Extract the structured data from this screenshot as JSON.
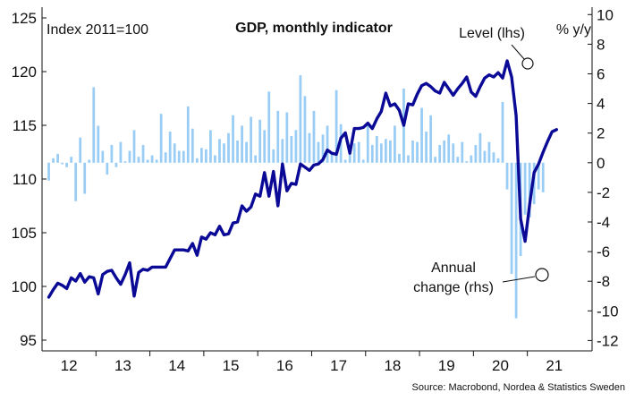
{
  "chart_data": {
    "type": "bar+line",
    "title": "GDP, monthly indicator",
    "left_axis_label": "Index 2011=100",
    "right_axis_label": "% y/y",
    "source": "Source: Macrobond, Nordea & Statistics Sweden",
    "left_ylim": [
      94,
      126
    ],
    "right_ylim": [
      -12.7,
      10.5
    ],
    "left_ticks": [
      95,
      100,
      105,
      110,
      115,
      120,
      125
    ],
    "right_ticks": [
      10,
      8,
      6,
      4,
      2,
      0,
      -2,
      -4,
      -6,
      -8,
      -10,
      -12
    ],
    "xlim": [
      2011.5,
      2021.7
    ],
    "x_ticks": [
      {
        "label": "12",
        "x": 2012.0
      },
      {
        "label": "13",
        "x": 2013.0
      },
      {
        "label": "14",
        "x": 2014.0
      },
      {
        "label": "15",
        "x": 2015.0
      },
      {
        "label": "16",
        "x": 2016.0
      },
      {
        "label": "17",
        "x": 2017.0
      },
      {
        "label": "18",
        "x": 2018.0
      },
      {
        "label": "19",
        "x": 2019.0
      },
      {
        "label": "20",
        "x": 2020.0
      },
      {
        "label": "21",
        "x": 2021.0
      }
    ],
    "annotations": [
      {
        "text": "Level (lhs)",
        "series": "Level (lhs)"
      },
      {
        "text_lines": [
          "Annual",
          "change (rhs)"
        ],
        "series": "Annual change (rhs)"
      }
    ],
    "colors": {
      "level": "#0a0a96",
      "bars": "#99cdf5",
      "axis": "#111111",
      "gridline": "#e6e6e6"
    },
    "series": [
      {
        "name": "Annual change (rhs)",
        "axis": "right",
        "type": "bar",
        "start": [
          2011,
          8
        ],
        "values": [
          -1.2,
          0.3,
          0.6,
          -0.1,
          -0.3,
          0.4,
          -2.6,
          1.7,
          -2.1,
          0.2,
          5.1,
          2.5,
          0.8,
          -0.8,
          1.2,
          -0.3,
          1.4,
          0.1,
          0.8,
          2.2,
          0.4,
          1.2,
          0.2,
          0.5,
          0.2,
          3.3,
          0.7,
          2.1,
          1.3,
          0.8,
          0.8,
          3.8,
          2.3,
          0.3,
          1.0,
          0.9,
          2.2,
          0.5,
          1.6,
          1.3,
          2.0,
          3.2,
          1.5,
          2.5,
          1.4,
          3.1,
          0.5,
          2.9,
          2.2,
          4.8,
          0.9,
          3.5,
          1.6,
          3.4,
          1.8,
          2.2,
          5.9,
          4.5,
          2.0,
          3.5,
          1.4,
          1.9,
          2.5,
          0.7,
          4.9,
          2.6,
          0.2,
          0.9,
          1.3,
          1.4,
          0.2,
          2.5,
          1.2,
          1.8,
          1.3,
          1.6,
          1.5,
          2.5,
          0.6,
          5.0,
          0.5,
          1.5,
          1.4,
          3.7,
          2.1,
          3.2,
          0.4,
          1.2,
          1.5,
          1.9,
          1.3,
          0.4,
          1.4,
          0.1,
          0.5,
          1.2,
          2.0,
          0.8,
          1.4,
          0.7,
          0.3,
          4.1,
          -1.8,
          -7.5,
          -10.5,
          -6.3,
          -3.5,
          -3.7,
          -2.8,
          -1.8,
          -2.0
        ]
      },
      {
        "name": "Level (lhs)",
        "axis": "left",
        "type": "line",
        "start": [
          2011,
          8
        ],
        "values": [
          99.0,
          99.7,
          100.3,
          100.1,
          99.8,
          100.8,
          100.5,
          101.2,
          100.4,
          100.9,
          100.8,
          99.3,
          101.1,
          101.4,
          101.5,
          100.8,
          100.2,
          101.1,
          102.2,
          99.1,
          101.3,
          101.6,
          101.5,
          101.8,
          101.8,
          101.8,
          101.8,
          102.6,
          103.4,
          103.4,
          103.4,
          103.3,
          104.0,
          102.9,
          104.6,
          104.4,
          105.0,
          104.8,
          105.6,
          104.8,
          104.9,
          105.9,
          106.0,
          107.5,
          107.0,
          107.4,
          108.6,
          108.4,
          110.6,
          108.4,
          110.7,
          107.5,
          111.4,
          108.9,
          109.6,
          109.5,
          111.4,
          111.1,
          110.8,
          111.3,
          111.4,
          111.8,
          112.7,
          112.4,
          112.3,
          113.8,
          114.3,
          112.4,
          114.7,
          114.7,
          114.8,
          115.2,
          114.7,
          115.6,
          116.3,
          118.0,
          116.8,
          117.0,
          116.4,
          115.0,
          117.0,
          116.9,
          117.9,
          118.7,
          118.9,
          118.6,
          118.2,
          118.0,
          119.0,
          118.4,
          117.8,
          118.4,
          118.9,
          119.5,
          118.1,
          117.7,
          118.6,
          119.4,
          119.7,
          119.5,
          119.9,
          119.4,
          121.0,
          119.5,
          115.9,
          106.3,
          104.2,
          107.6,
          110.6,
          111.4,
          112.5,
          113.5,
          114.4,
          114.6
        ]
      }
    ]
  }
}
